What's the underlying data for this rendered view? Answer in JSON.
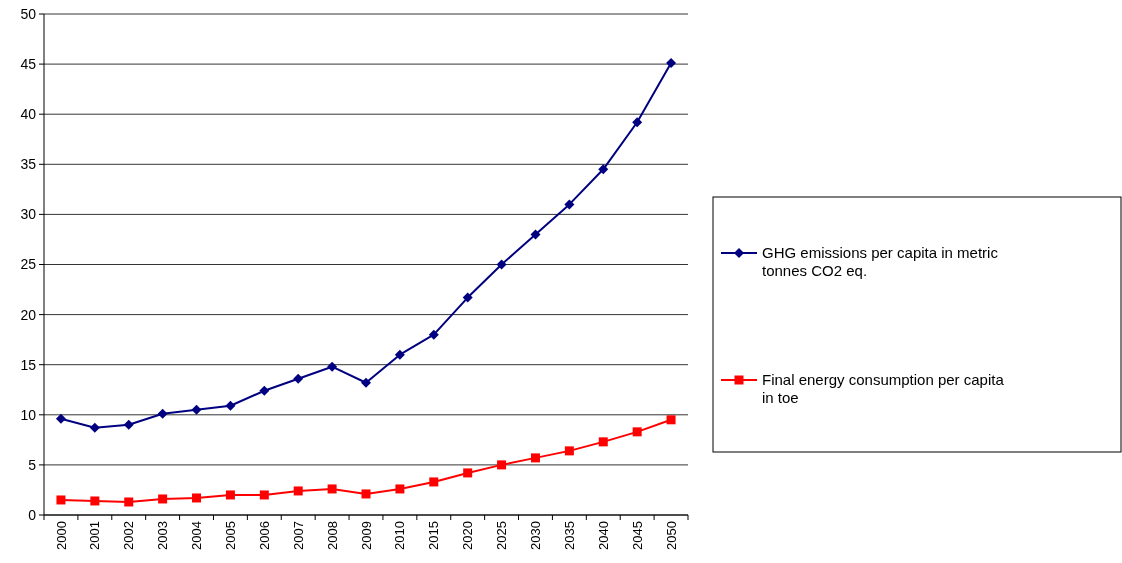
{
  "chart_data": {
    "type": "line",
    "categories": [
      "2000",
      "2001",
      "2002",
      "2003",
      "2004",
      "2005",
      "2006",
      "2007",
      "2008",
      "2009",
      "2010",
      "2015",
      "2020",
      "2025",
      "2030",
      "2035",
      "2040",
      "2045",
      "2050"
    ],
    "series": [
      {
        "name": "GHG emissions per capita in metric tonnes CO2 eq.",
        "color": "#000080",
        "marker": "diamond",
        "values": [
          9.6,
          8.7,
          9.0,
          10.1,
          10.5,
          10.9,
          12.4,
          13.6,
          14.8,
          13.2,
          16.0,
          18.0,
          21.7,
          25.0,
          28.0,
          31.0,
          34.5,
          39.2,
          45.1
        ]
      },
      {
        "name": "Final energy consumption per capita in toe",
        "color": "#ff0000",
        "marker": "square",
        "values": [
          1.5,
          1.4,
          1.3,
          1.6,
          1.7,
          2.0,
          2.0,
          2.4,
          2.6,
          2.1,
          2.6,
          3.3,
          4.2,
          5.0,
          5.7,
          6.4,
          7.3,
          8.3,
          9.5
        ]
      }
    ],
    "ylim": [
      0,
      50
    ],
    "yticks": [
      0,
      5,
      10,
      15,
      20,
      25,
      30,
      35,
      40,
      45,
      50
    ],
    "grid": "y",
    "legend": "right",
    "line_style": "solid"
  }
}
